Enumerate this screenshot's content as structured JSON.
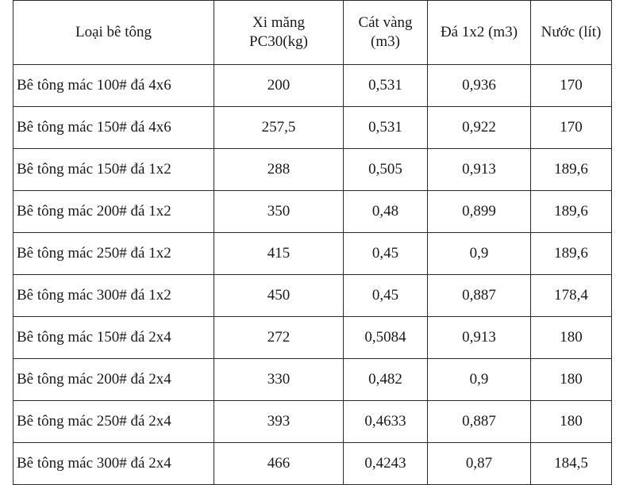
{
  "table": {
    "headers": [
      "Loại bê tông",
      "Xi măng\nPC30(kg)",
      "Cát vàng\n(m3)",
      "Đá 1x2 (m3)",
      "Nước (lít)"
    ],
    "rows": [
      [
        "Bê tông mác 100# đá 4x6",
        "200",
        "0,531",
        "0,936",
        "170"
      ],
      [
        "Bê tông mác 150# đá 4x6",
        "257,5",
        "0,531",
        "0,922",
        "170"
      ],
      [
        "Bê tông mác 150# đá 1x2",
        "288",
        "0,505",
        "0,913",
        "189,6"
      ],
      [
        "Bê tông mác 200# đá 1x2",
        "350",
        "0,48",
        "0,899",
        "189,6"
      ],
      [
        "Bê tông mác 250# đá 1x2",
        "415",
        "0,45",
        "0,9",
        "189,6"
      ],
      [
        "Bê tông mác 300# đá 1x2",
        "450",
        "0,45",
        "0,887",
        "178,4"
      ],
      [
        "Bê tông mác 150# đá 2x4",
        "272",
        "0,5084",
        "0,913",
        "180"
      ],
      [
        "Bê tông mác 200# đá 2x4",
        "330",
        "0,482",
        "0,9",
        "180"
      ],
      [
        "Bê tông mác 250# đá 2x4",
        "393",
        "0,4633",
        "0,887",
        "180"
      ],
      [
        "Bê tông mác 300# đá 2x4",
        "466",
        "0,4243",
        "0,87",
        "184,5"
      ]
    ]
  }
}
